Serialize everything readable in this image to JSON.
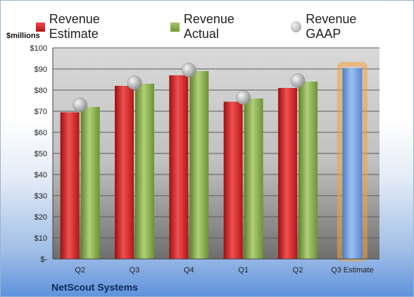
{
  "legend": {
    "estimate": "Revenue Estimate",
    "actual": "Revenue Actual",
    "gaap": "Revenue GAAP"
  },
  "units": "$millions",
  "company": "NetScout Systems",
  "colors": {
    "estimate": "#d42727",
    "actual": "#8db152",
    "gaap": "#b8b8b8",
    "estimate_bar": "#6d9ad6",
    "highlight": "#f5a13a"
  },
  "chart_data": {
    "type": "bar",
    "categories": [
      "Q2",
      "Q3",
      "Q4",
      "Q1",
      "Q2",
      "Q3 Estimate"
    ],
    "series": [
      {
        "name": "Revenue Estimate",
        "values": [
          69.5,
          82,
          87,
          74.5,
          81,
          null
        ]
      },
      {
        "name": "Revenue Actual",
        "values": [
          72,
          83,
          89,
          76,
          84,
          null
        ]
      },
      {
        "name": "Revenue GAAP",
        "values": [
          73,
          83.5,
          89.5,
          76.5,
          84.5,
          null
        ]
      }
    ],
    "forecast": {
      "category": "Q3 Estimate",
      "value": 90.5
    },
    "ylabel": "$millions",
    "ylim": [
      0,
      100
    ],
    "yticks": [
      0,
      10,
      20,
      30,
      40,
      50,
      60,
      70,
      80,
      90,
      100
    ],
    "ytick_labels": [
      "$-",
      "$10",
      "$20",
      "$30",
      "$40",
      "$50",
      "$60",
      "$70",
      "$80",
      "$90",
      "$100"
    ],
    "grid": true,
    "legend_position": "top"
  }
}
